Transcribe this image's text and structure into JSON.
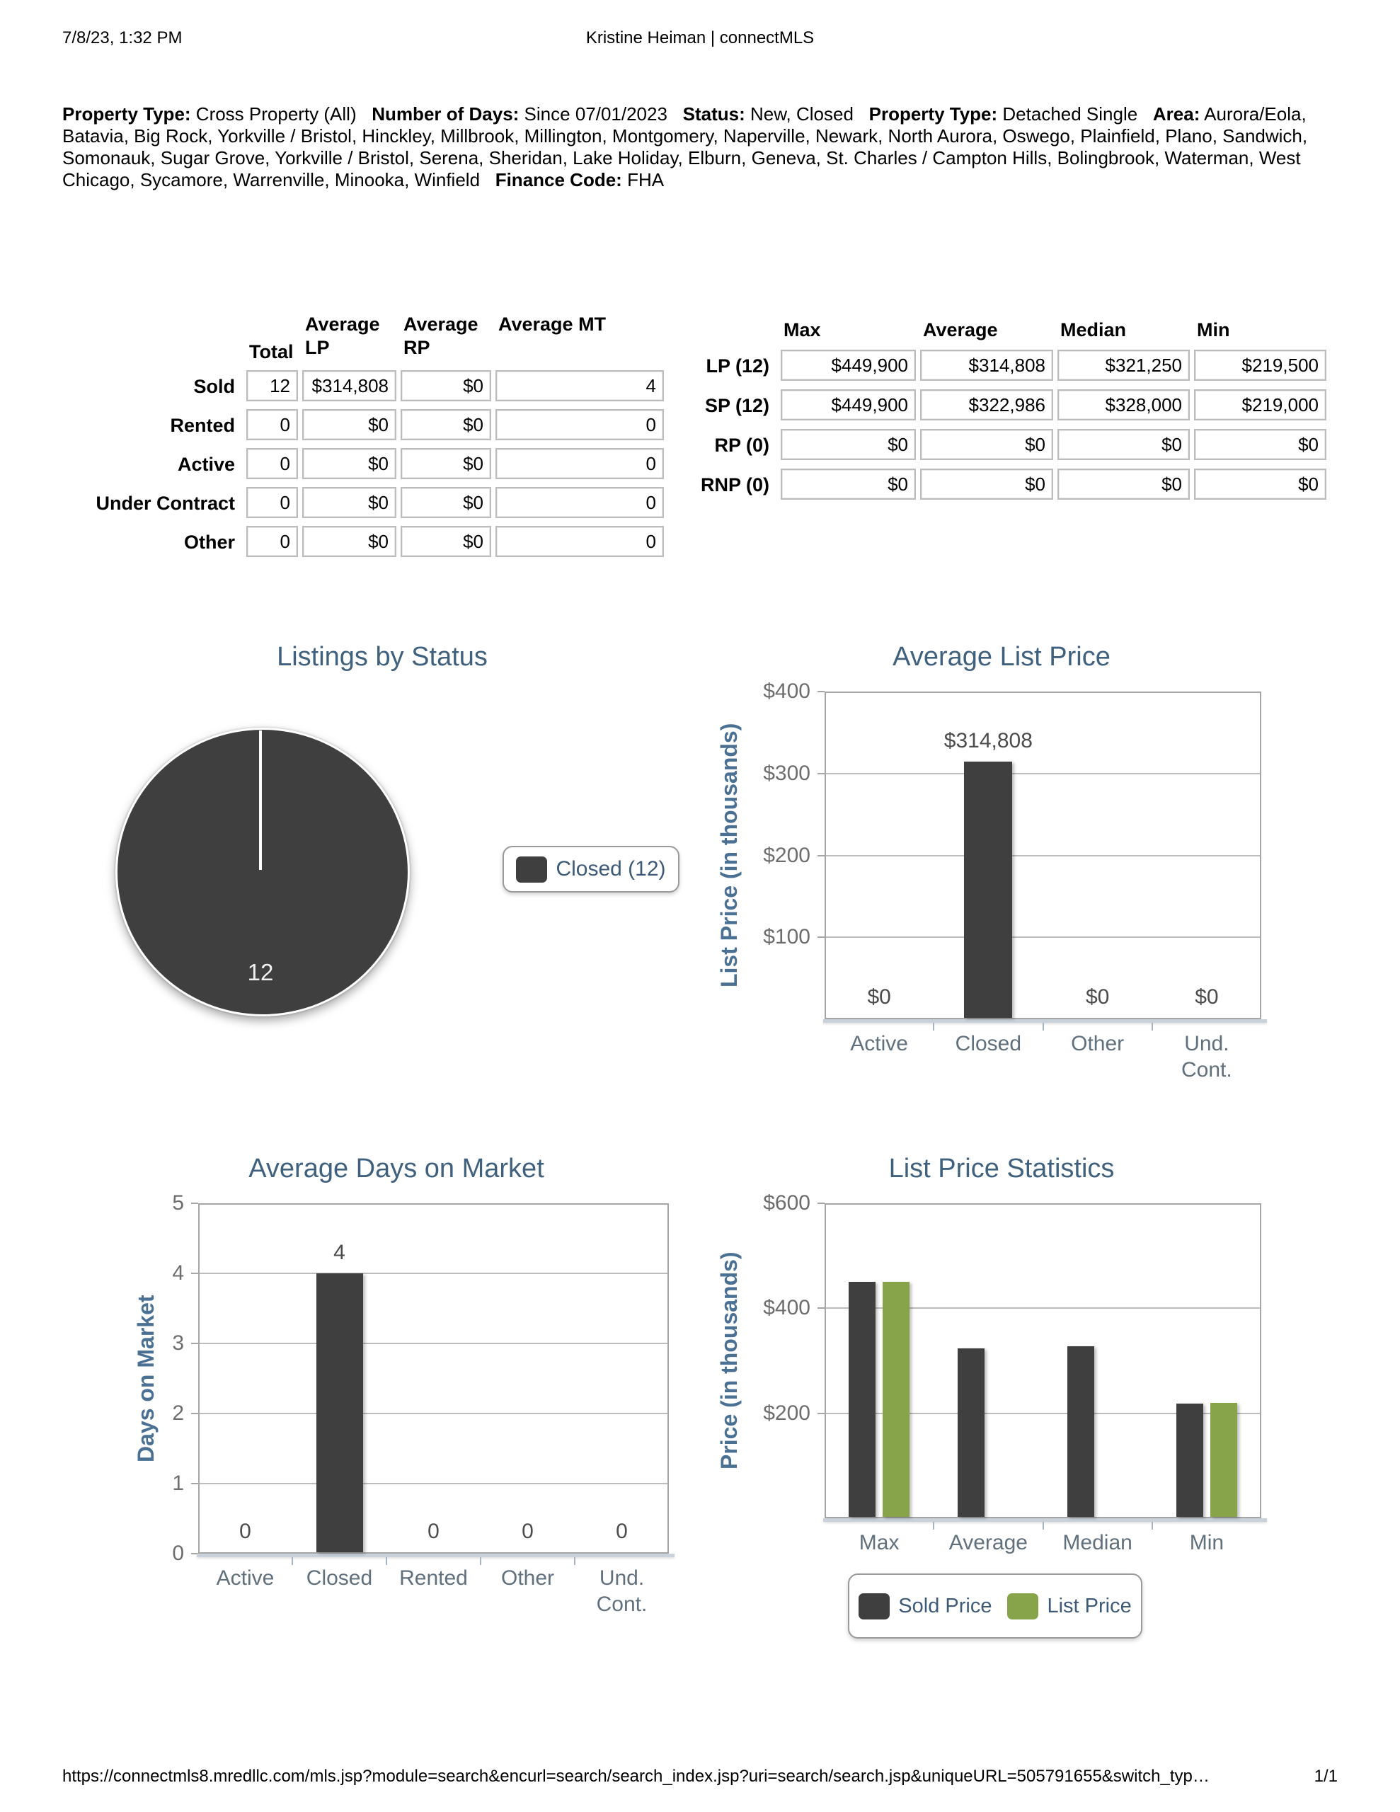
{
  "header": {
    "datetime": "7/8/23, 1:32 PM",
    "title": "Kristine Heiman | connectMLS"
  },
  "criteria": {
    "segments": [
      {
        "label": "Property Type:",
        "value": "Cross Property (All)"
      },
      {
        "label": "Number of Days:",
        "value": "Since 07/01/2023"
      },
      {
        "label": "Status:",
        "value": "New, Closed"
      },
      {
        "label": "Property Type:",
        "value": "Detached Single"
      },
      {
        "label": "Area:",
        "value": "Aurora/Eola, Batavia, Big Rock, Yorkville / Bristol, Hinckley, Millbrook, Millington, Montgomery, Naperville, Newark, North Aurora, Oswego, Plainfield, Plano, Sandwich, Somonauk, Sugar Grove, Yorkville / Bristol, Serena, Sheridan, Lake Holiday, Elburn, Geneva, St. Charles / Campton Hills, Bolingbrook, Waterman, West Chicago, Sycamore, Warrenville, Minooka, Winfield"
      },
      {
        "label": "Finance Code:",
        "value": "FHA"
      }
    ]
  },
  "summary_table": {
    "headers": [
      "Total",
      "Average LP",
      "Average RP",
      "Average MT"
    ],
    "rows": [
      {
        "label": "Sold",
        "cells": [
          "12",
          "$314,808",
          "$0",
          "4"
        ]
      },
      {
        "label": "Rented",
        "cells": [
          "0",
          "$0",
          "$0",
          "0"
        ]
      },
      {
        "label": "Active",
        "cells": [
          "0",
          "$0",
          "$0",
          "0"
        ]
      },
      {
        "label": "Under Contract",
        "cells": [
          "0",
          "$0",
          "$0",
          "0"
        ]
      },
      {
        "label": "Other",
        "cells": [
          "0",
          "$0",
          "$0",
          "0"
        ]
      }
    ]
  },
  "stats_table": {
    "headers": [
      "Max",
      "Average",
      "Median",
      "Min"
    ],
    "rows": [
      {
        "label": "LP (12)",
        "cells": [
          "$449,900",
          "$314,808",
          "$321,250",
          "$219,500"
        ]
      },
      {
        "label": "SP (12)",
        "cells": [
          "$449,900",
          "$322,986",
          "$328,000",
          "$219,000"
        ]
      },
      {
        "label": "RP (0)",
        "cells": [
          "$0",
          "$0",
          "$0",
          "$0"
        ]
      },
      {
        "label": "RNP (0)",
        "cells": [
          "$0",
          "$0",
          "$0",
          "$0"
        ]
      }
    ]
  },
  "chart_data": [
    {
      "type": "pie",
      "title": "Listings by Status",
      "slices": [
        {
          "label": "Closed",
          "value": 12,
          "color": "#3f3f3f"
        }
      ],
      "data_label": "12",
      "legend": [
        {
          "label": "Closed (12)",
          "color": "#3f3f3f"
        }
      ],
      "legend_position": "right"
    },
    {
      "type": "bar",
      "title": "Average List Price",
      "ylabel": "List Price (in thousands)",
      "ylim": [
        0,
        400
      ],
      "yticks": [
        "$400",
        "$300",
        "$200",
        "$100"
      ],
      "categories": [
        "Active",
        "Closed",
        "Other",
        "Und.\nCont."
      ],
      "values": [
        0,
        314.808,
        0,
        0
      ],
      "bar_labels": [
        "$0",
        "$314,808",
        "$0",
        "$0"
      ],
      "bar_color": "#3f3f3f",
      "grid": true,
      "legend_position": "none"
    },
    {
      "type": "bar",
      "title": "Average Days on Market",
      "ylabel": "Days on Market",
      "ylim": [
        0,
        5
      ],
      "yticks": [
        "5",
        "4",
        "3",
        "2",
        "1",
        "0"
      ],
      "categories": [
        "Active",
        "Closed",
        "Rented",
        "Other",
        "Und.\nCont."
      ],
      "values": [
        0,
        4,
        0,
        0,
        0
      ],
      "bar_labels": [
        "0",
        "4",
        "0",
        "0",
        "0"
      ],
      "bar_color": "#3f3f3f",
      "grid": true,
      "legend_position": "none"
    },
    {
      "type": "bar",
      "title": "List Price Statistics",
      "ylabel": "Price (in thousands)",
      "ylim": [
        0,
        600
      ],
      "yticks": [
        "$600",
        "$400",
        "$200"
      ],
      "categories": [
        "Max",
        "Average",
        "Median",
        "Min"
      ],
      "series": [
        {
          "name": "Sold Price",
          "color": "#3f3f3f",
          "values": [
            449.9,
            322.986,
            328.0,
            219.0
          ]
        },
        {
          "name": "List Price",
          "color": "#87a44a",
          "values": [
            449.9,
            null,
            null,
            219.5
          ]
        }
      ],
      "grid": true,
      "legend_position": "bottom"
    }
  ],
  "colors": {
    "title_blue": "#40617e",
    "axis_blue": "#4a7094",
    "bar_dark": "#3f3f3f",
    "bar_green": "#87a44a"
  },
  "footer": {
    "url": "https://connectmls8.mredllc.com/mls.jsp?module=search&encurl=search/search_index.jsp?uri=search/search.jsp&uniqueURL=505791655&switch_typ…",
    "page": "1/1"
  }
}
